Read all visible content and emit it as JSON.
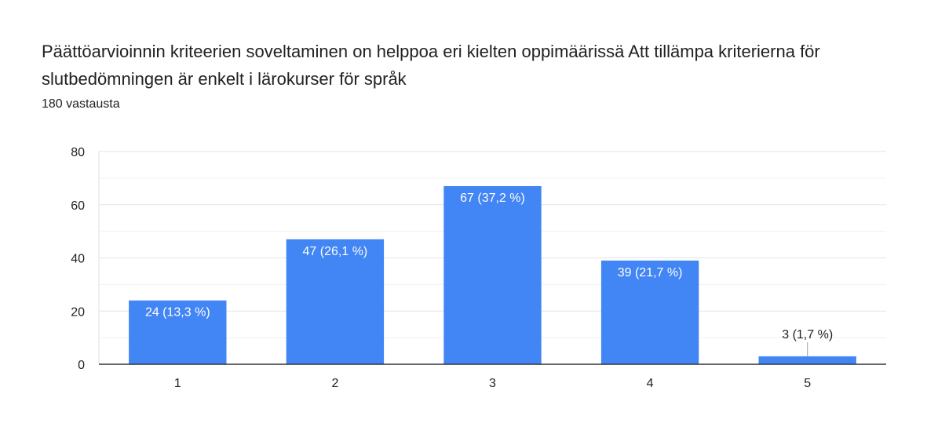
{
  "header": {
    "title": "Päättöarvioinnin kriteerien soveltaminen on helppoa eri kielten oppimäärissä Att tillämpa kriterierna för slutbedömningen är enkelt i lärokurser för språk",
    "subtitle": "180 vastausta"
  },
  "colors": {
    "bar": "#4285f4",
    "grid": "#e5e5e5",
    "axis": "#333333",
    "label_inside": "#ffffff",
    "label_outside": "#202124"
  },
  "chart_data": {
    "type": "bar",
    "categories": [
      "1",
      "2",
      "3",
      "4",
      "5"
    ],
    "values": [
      24,
      47,
      67,
      39,
      3
    ],
    "data_labels": [
      "24 (13,3 %)",
      "47 (26,1 %)",
      "67 (37,2 %)",
      "39 (21,7 %)",
      "3 (1,7 %)"
    ],
    "ylim": [
      0,
      80
    ],
    "yticks": [
      0,
      20,
      40,
      60,
      80
    ],
    "grid": true,
    "legend": "none"
  }
}
